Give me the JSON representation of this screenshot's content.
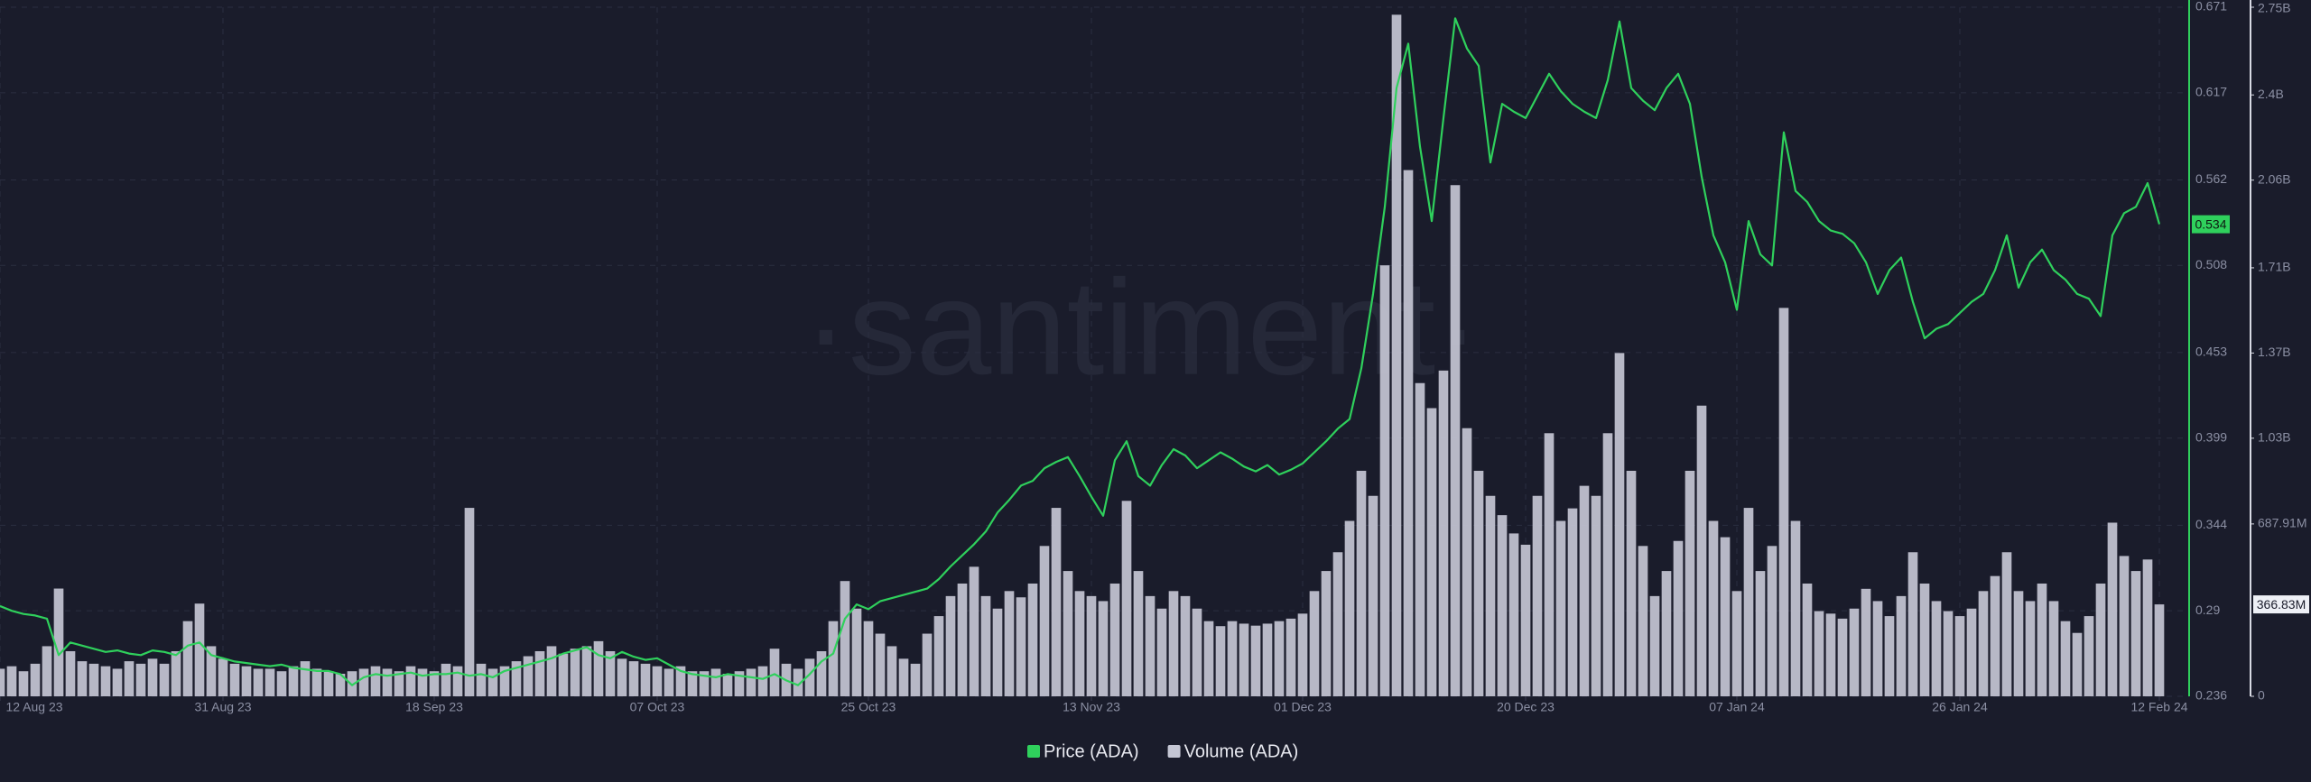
{
  "chart_data": {
    "type": "line",
    "watermark": "·santiment·",
    "x": [
      "2023-08-12",
      "2023-08-13",
      "2023-08-14",
      "2023-08-15",
      "2023-08-16",
      "2023-08-17",
      "2023-08-18",
      "2023-08-19",
      "2023-08-20",
      "2023-08-21",
      "2023-08-22",
      "2023-08-23",
      "2023-08-24",
      "2023-08-25",
      "2023-08-26",
      "2023-08-27",
      "2023-08-28",
      "2023-08-29",
      "2023-08-30",
      "2023-08-31",
      "2023-09-01",
      "2023-09-02",
      "2023-09-03",
      "2023-09-04",
      "2023-09-05",
      "2023-09-06",
      "2023-09-07",
      "2023-09-08",
      "2023-09-09",
      "2023-09-10",
      "2023-09-11",
      "2023-09-12",
      "2023-09-13",
      "2023-09-14",
      "2023-09-15",
      "2023-09-16",
      "2023-09-17",
      "2023-09-18",
      "2023-09-19",
      "2023-09-20",
      "2023-09-21",
      "2023-09-22",
      "2023-09-23",
      "2023-09-24",
      "2023-09-25",
      "2023-09-26",
      "2023-09-27",
      "2023-09-28",
      "2023-09-29",
      "2023-09-30",
      "2023-10-01",
      "2023-10-02",
      "2023-10-03",
      "2023-10-04",
      "2023-10-05",
      "2023-10-06",
      "2023-10-07",
      "2023-10-08",
      "2023-10-09",
      "2023-10-10",
      "2023-10-11",
      "2023-10-12",
      "2023-10-13",
      "2023-10-14",
      "2023-10-15",
      "2023-10-16",
      "2023-10-17",
      "2023-10-18",
      "2023-10-19",
      "2023-10-20",
      "2023-10-21",
      "2023-10-22",
      "2023-10-23",
      "2023-10-24",
      "2023-10-25",
      "2023-10-26",
      "2023-10-27",
      "2023-10-28",
      "2023-10-29",
      "2023-10-30",
      "2023-10-31",
      "2023-11-01",
      "2023-11-02",
      "2023-11-03",
      "2023-11-04",
      "2023-11-05",
      "2023-11-06",
      "2023-11-07",
      "2023-11-08",
      "2023-11-09",
      "2023-11-10",
      "2023-11-11",
      "2023-11-12",
      "2023-11-13",
      "2023-11-14",
      "2023-11-15",
      "2023-11-16",
      "2023-11-17",
      "2023-11-18",
      "2023-11-19",
      "2023-11-20",
      "2023-11-21",
      "2023-11-22",
      "2023-11-23",
      "2023-11-24",
      "2023-11-25",
      "2023-11-26",
      "2023-11-27",
      "2023-11-28",
      "2023-11-29",
      "2023-11-30",
      "2023-12-01",
      "2023-12-02",
      "2023-12-03",
      "2023-12-04",
      "2023-12-05",
      "2023-12-06",
      "2023-12-07",
      "2023-12-08",
      "2023-12-09",
      "2023-12-10",
      "2023-12-11",
      "2023-12-12",
      "2023-12-13",
      "2023-12-14",
      "2023-12-15",
      "2023-12-16",
      "2023-12-17",
      "2023-12-18",
      "2023-12-19",
      "2023-12-20",
      "2023-12-21",
      "2023-12-22",
      "2023-12-23",
      "2023-12-24",
      "2023-12-25",
      "2023-12-26",
      "2023-12-27",
      "2023-12-28",
      "2023-12-29",
      "2023-12-30",
      "2023-12-31",
      "2024-01-01",
      "2024-01-02",
      "2024-01-03",
      "2024-01-04",
      "2024-01-05",
      "2024-01-06",
      "2024-01-07",
      "2024-01-08",
      "2024-01-09",
      "2024-01-10",
      "2024-01-11",
      "2024-01-12",
      "2024-01-13",
      "2024-01-14",
      "2024-01-15",
      "2024-01-16",
      "2024-01-17",
      "2024-01-18",
      "2024-01-19",
      "2024-01-20",
      "2024-01-21",
      "2024-01-22",
      "2024-01-23",
      "2024-01-24",
      "2024-01-25",
      "2024-01-26",
      "2024-01-27",
      "2024-01-28",
      "2024-01-29",
      "2024-01-30",
      "2024-01-31",
      "2024-02-01",
      "2024-02-02",
      "2024-02-03",
      "2024-02-04",
      "2024-02-05",
      "2024-02-06",
      "2024-02-07",
      "2024-02-08",
      "2024-02-09",
      "2024-02-10",
      "2024-02-11",
      "2024-02-12"
    ],
    "series": [
      {
        "name": "Price (ADA)",
        "type": "line",
        "color": "#2fd05c",
        "values": [
          0.293,
          0.29,
          0.288,
          0.287,
          0.285,
          0.262,
          0.27,
          0.268,
          0.266,
          0.264,
          0.265,
          0.263,
          0.262,
          0.265,
          0.264,
          0.262,
          0.268,
          0.27,
          0.262,
          0.26,
          0.258,
          0.257,
          0.256,
          0.255,
          0.256,
          0.254,
          0.253,
          0.252,
          0.252,
          0.25,
          0.243,
          0.248,
          0.25,
          0.249,
          0.25,
          0.251,
          0.249,
          0.25,
          0.25,
          0.251,
          0.249,
          0.25,
          0.248,
          0.252,
          0.254,
          0.256,
          0.258,
          0.26,
          0.263,
          0.265,
          0.267,
          0.262,
          0.26,
          0.264,
          0.261,
          0.259,
          0.26,
          0.256,
          0.252,
          0.25,
          0.249,
          0.248,
          0.25,
          0.249,
          0.248,
          0.247,
          0.25,
          0.246,
          0.243,
          0.25,
          0.258,
          0.263,
          0.285,
          0.294,
          0.291,
          0.296,
          0.298,
          0.3,
          0.302,
          0.304,
          0.31,
          0.318,
          0.325,
          0.332,
          0.34,
          0.352,
          0.36,
          0.369,
          0.372,
          0.38,
          0.384,
          0.387,
          0.375,
          0.362,
          0.35,
          0.385,
          0.397,
          0.375,
          0.369,
          0.382,
          0.392,
          0.388,
          0.38,
          0.385,
          0.39,
          0.386,
          0.381,
          0.378,
          0.382,
          0.376,
          0.379,
          0.383,
          0.39,
          0.397,
          0.405,
          0.411,
          0.443,
          0.49,
          0.545,
          0.62,
          0.648,
          0.583,
          0.536,
          0.601,
          0.664,
          0.645,
          0.634,
          0.573,
          0.61,
          0.605,
          0.601,
          0.615,
          0.629,
          0.618,
          0.61,
          0.605,
          0.601,
          0.625,
          0.662,
          0.62,
          0.612,
          0.606,
          0.62,
          0.629,
          0.61,
          0.564,
          0.527,
          0.51,
          0.48,
          0.536,
          0.515,
          0.508,
          0.592,
          0.555,
          0.548,
          0.536,
          0.53,
          0.528,
          0.522,
          0.51,
          0.49,
          0.505,
          0.513,
          0.485,
          0.462,
          0.468,
          0.471,
          0.478,
          0.485,
          0.49,
          0.505,
          0.527,
          0.494,
          0.51,
          0.518,
          0.505,
          0.499,
          0.49,
          0.487,
          0.476,
          0.527,
          0.541,
          0.545,
          0.56,
          0.534
        ]
      },
      {
        "name": "Volume (ADA)",
        "type": "bar",
        "axis": "y2",
        "color": "#c4c6d4",
        "values": [
          110000000,
          120000000,
          100000000,
          130000000,
          200000000,
          430000000,
          180000000,
          140000000,
          130000000,
          120000000,
          110000000,
          140000000,
          130000000,
          150000000,
          130000000,
          180000000,
          300000000,
          370000000,
          200000000,
          150000000,
          130000000,
          120000000,
          110000000,
          110000000,
          100000000,
          120000000,
          140000000,
          110000000,
          100000000,
          90000000,
          100000000,
          110000000,
          120000000,
          110000000,
          100000000,
          120000000,
          110000000,
          100000000,
          130000000,
          120000000,
          752000000,
          130000000,
          110000000,
          120000000,
          140000000,
          160000000,
          180000000,
          200000000,
          170000000,
          190000000,
          200000000,
          220000000,
          180000000,
          150000000,
          140000000,
          130000000,
          120000000,
          110000000,
          120000000,
          100000000,
          100000000,
          110000000,
          90000000,
          100000000,
          110000000,
          120000000,
          190000000,
          130000000,
          110000000,
          150000000,
          180000000,
          300000000,
          460000000,
          350000000,
          300000000,
          250000000,
          200000000,
          150000000,
          130000000,
          250000000,
          320000000,
          400000000,
          450000000,
          517000000,
          400000000,
          350000000,
          420000000,
          395000000,
          450000000,
          600000000,
          752000000,
          500000000,
          420000000,
          400000000,
          380000000,
          450000000,
          780000000,
          500000000,
          400000000,
          350000000,
          420000000,
          400000000,
          350000000,
          300000000,
          280000000,
          300000000,
          290000000,
          282000000,
          290000000,
          300000000,
          310000000,
          330000000,
          420000000,
          500000000,
          575000000,
          700000000,
          900000000,
          800000000,
          1720000000,
          2720000000,
          2100000000,
          1250000000,
          1150000000,
          1300000000,
          2040000000,
          1070000000,
          900000000,
          800000000,
          723000000,
          650000000,
          605000000,
          800000000,
          1050000000,
          700000000,
          750000000,
          840000000,
          800000000,
          1050000000,
          1370000000,
          900000000,
          600000000,
          400000000,
          500000000,
          620000000,
          900000000,
          1160000000,
          700000000,
          635000000,
          420000000,
          752000000,
          500000000,
          600000000,
          1550000000,
          700000000,
          450000000,
          340000000,
          330000000,
          310000000,
          350000000,
          429000000,
          380000000,
          320000000,
          400000000,
          575000000,
          450000000,
          380000000,
          340000000,
          320000000,
          350000000,
          420000000,
          480000000,
          575000000,
          420000000,
          380000000,
          450000000,
          380000000,
          300000000,
          253000000,
          320000000,
          450000000,
          693000000,
          560000000,
          500000000,
          546000000,
          366830000
        ]
      }
    ],
    "xlim": [
      "2023-08-12",
      "2024-02-12"
    ],
    "xticks": [
      {
        "value": "2023-08-12",
        "label": "12 Aug 23"
      },
      {
        "value": "2023-08-31",
        "label": "31 Aug 23"
      },
      {
        "value": "2023-09-18",
        "label": "18 Sep 23"
      },
      {
        "value": "2023-10-07",
        "label": "07 Oct 23"
      },
      {
        "value": "2023-10-25",
        "label": "25 Oct 23"
      },
      {
        "value": "2023-11-13",
        "label": "13 Nov 23"
      },
      {
        "value": "2023-12-01",
        "label": "01 Dec 23"
      },
      {
        "value": "2023-12-20",
        "label": "20 Dec 23"
      },
      {
        "value": "2024-01-07",
        "label": "07 Jan 24"
      },
      {
        "value": "2024-01-26",
        "label": "26 Jan 24"
      },
      {
        "value": "2024-02-12",
        "label": "12 Feb 24"
      }
    ],
    "ylim": [
      0.236,
      0.671
    ],
    "yticks": [
      0.236,
      0.29,
      0.344,
      0.399,
      0.453,
      0.508,
      0.562,
      0.617,
      0.671
    ],
    "y2lim": [
      0,
      2750000000
    ],
    "y2ticks": [
      0,
      {
        "value": 687910000,
        "label": "687.91M"
      },
      {
        "value": 1030000000,
        "label": "1.03B"
      },
      {
        "value": 1370000000,
        "label": "1.37B"
      },
      {
        "value": 1710000000,
        "label": "1.71B"
      },
      {
        "value": 2060000000,
        "label": "2.06B"
      },
      {
        "value": 2400000000,
        "label": "2.4B"
      },
      {
        "value": 2750000000,
        "label": "2.75B"
      }
    ],
    "price_marker": 0.534,
    "volume_marker": {
      "value": 366830000,
      "label": "366.83M"
    },
    "grid": true,
    "legend": "bottom"
  }
}
